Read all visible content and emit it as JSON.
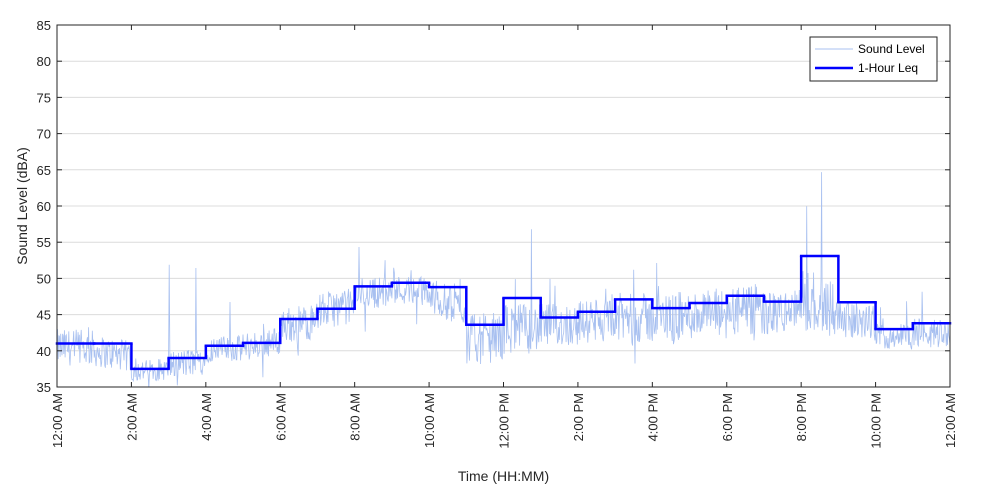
{
  "chart_data": {
    "type": "line",
    "xlabel": "Time (HH:MM)",
    "ylabel": "Sound Level (dBA)",
    "ylim": [
      35,
      85
    ],
    "yticks": [
      35,
      40,
      45,
      50,
      55,
      60,
      65,
      70,
      75,
      80,
      85
    ],
    "xlim_hours": [
      0,
      24
    ],
    "xticks": [
      {
        "h": 0,
        "label": "12:00 AM"
      },
      {
        "h": 2,
        "label": "2:00 AM"
      },
      {
        "h": 4,
        "label": "4:00 AM"
      },
      {
        "h": 6,
        "label": "6:00 AM"
      },
      {
        "h": 8,
        "label": "8:00 AM"
      },
      {
        "h": 10,
        "label": "10:00 AM"
      },
      {
        "h": 12,
        "label": "12:00 PM"
      },
      {
        "h": 14,
        "label": "2:00 PM"
      },
      {
        "h": 16,
        "label": "4:00 PM"
      },
      {
        "h": 18,
        "label": "6:00 PM"
      },
      {
        "h": 20,
        "label": "8:00 PM"
      },
      {
        "h": 22,
        "label": "10:00 PM"
      },
      {
        "h": 24,
        "label": "12:00 AM"
      }
    ],
    "grid": {
      "horizontal": true,
      "vertical": false
    },
    "legend": {
      "position": "top-right"
    },
    "series": [
      {
        "name": "Sound Level",
        "color": "#a8c0f0",
        "style": "thin-line",
        "hourly": [
          {
            "h": 0,
            "base": 40.5,
            "spread": 2.5,
            "peak": 46.5
          },
          {
            "h": 1,
            "base": 40.0,
            "spread": 2.2,
            "peak": 46.0
          },
          {
            "h": 2,
            "base": 37.2,
            "spread": 1.5,
            "peak": 40.5
          },
          {
            "h": 3,
            "base": 38.0,
            "spread": 2.0,
            "peak": 52.5
          },
          {
            "h": 4,
            "base": 40.2,
            "spread": 1.8,
            "peak": 50.0
          },
          {
            "h": 5,
            "base": 40.5,
            "spread": 2.0,
            "peak": 44.5
          },
          {
            "h": 6,
            "base": 43.5,
            "spread": 2.5,
            "peak": 49.0
          },
          {
            "h": 7,
            "base": 45.5,
            "spread": 2.5,
            "peak": 55.0
          },
          {
            "h": 8,
            "base": 48.0,
            "spread": 2.2,
            "peak": 53.5
          },
          {
            "h": 9,
            "base": 48.5,
            "spread": 2.0,
            "peak": 53.5
          },
          {
            "h": 10,
            "base": 47.5,
            "spread": 2.5,
            "peak": 53.0
          },
          {
            "h": 11,
            "base": 41.5,
            "spread": 3.5,
            "peak": 49.0
          },
          {
            "h": 12,
            "base": 43.0,
            "spread": 3.5,
            "peak": 57.0
          },
          {
            "h": 13,
            "base": 43.5,
            "spread": 3.0,
            "peak": 50.0
          },
          {
            "h": 14,
            "base": 44.0,
            "spread": 3.0,
            "peak": 51.0
          },
          {
            "h": 15,
            "base": 44.5,
            "spread": 3.5,
            "peak": 53.0
          },
          {
            "h": 16,
            "base": 44.5,
            "spread": 3.5,
            "peak": 53.0
          },
          {
            "h": 17,
            "base": 45.0,
            "spread": 3.5,
            "peak": 55.0
          },
          {
            "h": 18,
            "base": 45.5,
            "spread": 3.5,
            "peak": 53.0
          },
          {
            "h": 19,
            "base": 45.0,
            "spread": 3.0,
            "peak": 51.0
          },
          {
            "h": 20,
            "base": 47.0,
            "spread": 4.5,
            "peak": 65.0
          },
          {
            "h": 21,
            "base": 44.5,
            "spread": 2.5,
            "peak": 48.0
          },
          {
            "h": 22,
            "base": 42.0,
            "spread": 1.8,
            "peak": 47.0
          },
          {
            "h": 23,
            "base": 42.5,
            "spread": 2.0,
            "peak": 49.5
          }
        ]
      },
      {
        "name": "1-Hour Leq",
        "color": "#0000ff",
        "style": "thick-step",
        "hours": [
          0,
          1,
          2,
          3,
          4,
          5,
          6,
          7,
          8,
          9,
          10,
          11,
          12,
          13,
          14,
          15,
          16,
          17,
          18,
          19,
          20,
          21,
          22,
          23
        ],
        "values": [
          41,
          41,
          37.5,
          39,
          40.7,
          41.1,
          44.4,
          45.8,
          48.9,
          49.4,
          48.8,
          43.6,
          47.3,
          44.6,
          45.4,
          47.1,
          45.9,
          46.6,
          47.6,
          46.8,
          53.1,
          46.7,
          43,
          43.8
        ]
      }
    ]
  }
}
